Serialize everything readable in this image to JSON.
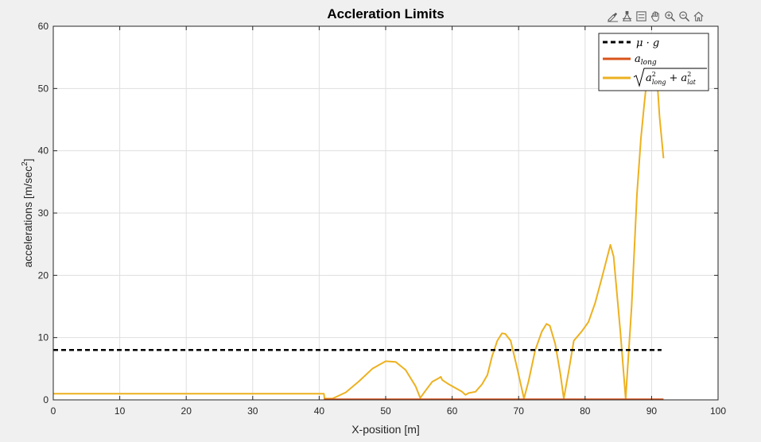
{
  "toolbar": {
    "icons": [
      "brush-icon",
      "data-tips-icon",
      "legend-toggle-icon",
      "pan-icon",
      "zoom-in-icon",
      "zoom-out-icon",
      "home-icon"
    ]
  },
  "colors": {
    "figure_bg": "#f0f0f0",
    "axes_bg": "#ffffff",
    "grid": "#dfdfdf",
    "mu_g": "#000000",
    "a_long": "#d95319",
    "a_total": "#edb120"
  },
  "chart_data": {
    "type": "line",
    "title": "Accleration Limits",
    "xlabel": "X-position [m]",
    "ylabel": "accelerations [m/sec",
    "ylabel_superscript": "2",
    "ylabel_suffix": "]",
    "xlim": [
      0,
      100
    ],
    "ylim": [
      0,
      60
    ],
    "xticks": [
      0,
      10,
      20,
      30,
      40,
      50,
      60,
      70,
      80,
      90,
      100
    ],
    "yticks": [
      0,
      10,
      20,
      30,
      40,
      50,
      60
    ],
    "grid": true,
    "legend_position": "top-right",
    "legend": {
      "mu_g": "μ · g",
      "a_long_base": "a",
      "a_long_sub": "long",
      "a_total_a1": "a",
      "a_total_sup1": "2",
      "a_total_sub1": "long",
      "a_total_plus": "+",
      "a_total_a2": "a",
      "a_total_sup2": "2",
      "a_total_sub2": "lat"
    },
    "series": [
      {
        "key": "mu_g",
        "style": "dashed",
        "points": [
          [
            0,
            8
          ],
          [
            91.5,
            8
          ]
        ]
      },
      {
        "key": "a_long",
        "style": "solid",
        "points": [
          [
            40.7,
            0.1
          ],
          [
            91.8,
            0.1
          ]
        ]
      },
      {
        "key": "a_total",
        "style": "solid",
        "points": [
          [
            0,
            1.0
          ],
          [
            40.7,
            1.0
          ],
          [
            40.8,
            0.2
          ],
          [
            42.0,
            0.2
          ],
          [
            44.0,
            1.2
          ],
          [
            46.0,
            3.0
          ],
          [
            48.0,
            5.0
          ],
          [
            50.0,
            6.2
          ],
          [
            51.5,
            6.1
          ],
          [
            53.0,
            4.8
          ],
          [
            54.5,
            2.2
          ],
          [
            55.2,
            0.3
          ],
          [
            56.0,
            1.5
          ],
          [
            57.0,
            2.9
          ],
          [
            58.0,
            3.5
          ],
          [
            58.3,
            3.7
          ],
          [
            58.5,
            3.2
          ],
          [
            59.5,
            2.5
          ],
          [
            60.5,
            1.9
          ],
          [
            61.5,
            1.3
          ],
          [
            62.0,
            0.8
          ],
          [
            62.5,
            1.1
          ],
          [
            63.5,
            1.3
          ],
          [
            64.5,
            2.5
          ],
          [
            65.3,
            4.0
          ],
          [
            66.0,
            7.0
          ],
          [
            66.8,
            9.5
          ],
          [
            67.5,
            10.7
          ],
          [
            68.0,
            10.6
          ],
          [
            68.8,
            9.5
          ],
          [
            69.8,
            5.0
          ],
          [
            70.8,
            0.2
          ],
          [
            71.5,
            3.0
          ],
          [
            72.5,
            8.0
          ],
          [
            73.5,
            11.0
          ],
          [
            74.2,
            12.2
          ],
          [
            74.7,
            11.9
          ],
          [
            75.5,
            9.0
          ],
          [
            76.3,
            4.0
          ],
          [
            76.8,
            0.2
          ],
          [
            77.6,
            5.0
          ],
          [
            78.3,
            9.5
          ],
          [
            79.5,
            11.0
          ],
          [
            80.5,
            12.5
          ],
          [
            81.5,
            15.5
          ],
          [
            82.5,
            19.5
          ],
          [
            83.8,
            24.9
          ],
          [
            84.3,
            23.0
          ],
          [
            85.3,
            11.0
          ],
          [
            86.1,
            0.2
          ],
          [
            87.0,
            15.0
          ],
          [
            87.8,
            33.0
          ],
          [
            88.4,
            42.0
          ],
          [
            88.9,
            47.5
          ],
          [
            89.3,
            51.5
          ],
          [
            89.8,
            55.0
          ],
          [
            90.3,
            56.0
          ],
          [
            90.7,
            53.5
          ],
          [
            91.2,
            45.5
          ],
          [
            91.8,
            38.8
          ]
        ]
      }
    ]
  }
}
